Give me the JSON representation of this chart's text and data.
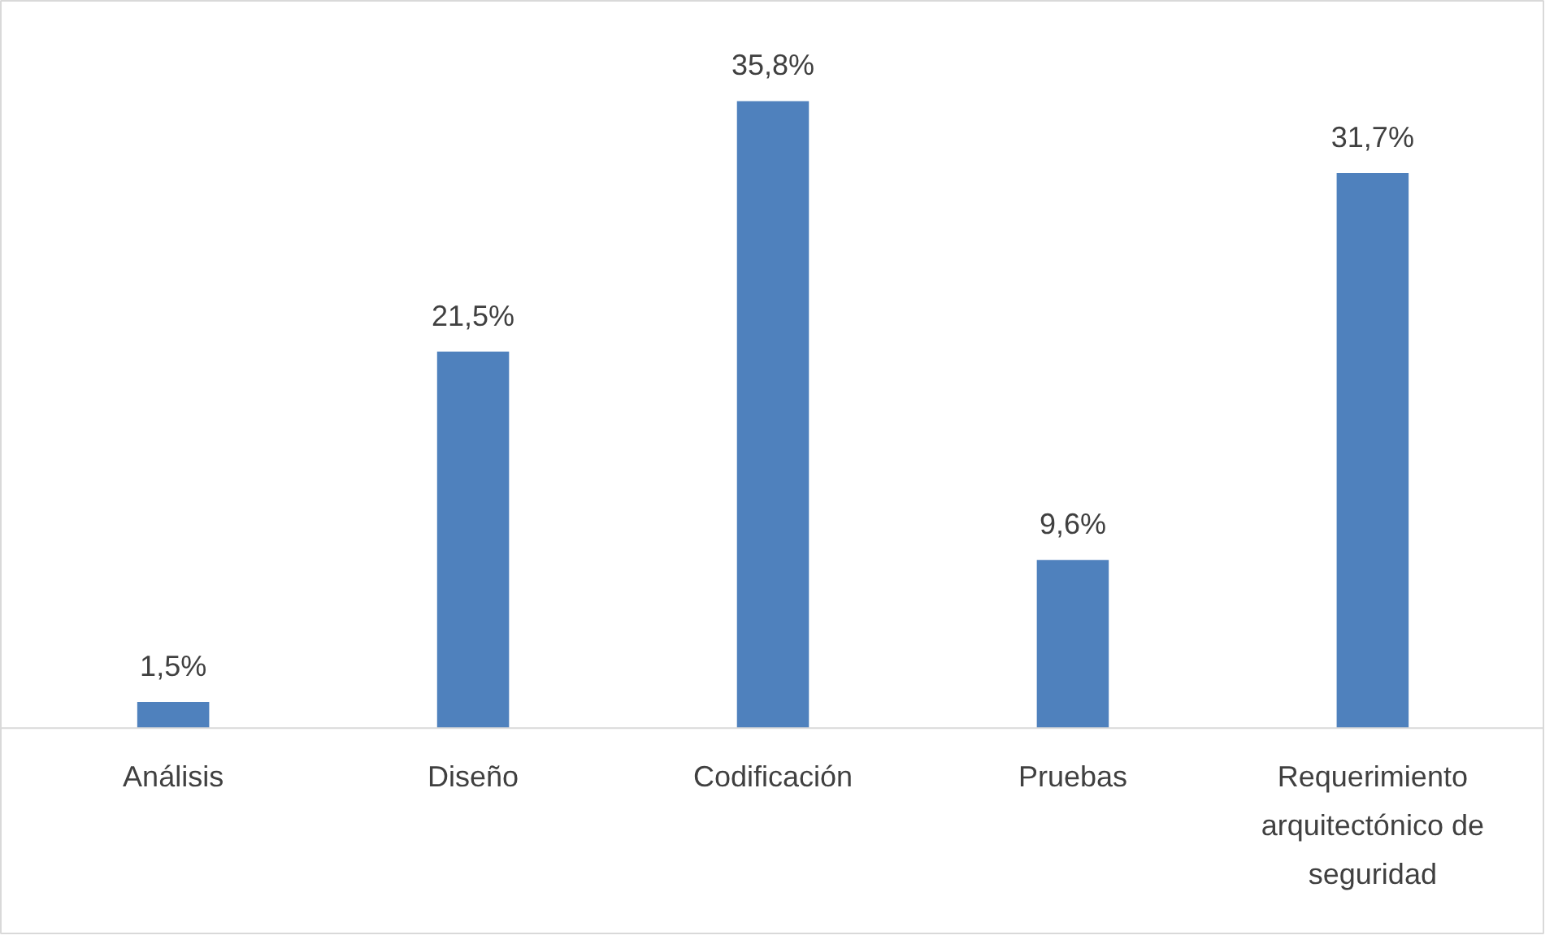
{
  "chart_data": {
    "type": "bar",
    "categories": [
      "Análisis",
      "Diseño",
      "Codificación",
      "Pruebas",
      "Requerimiento arquitectónico de seguridad"
    ],
    "values": [
      1.5,
      21.5,
      35.8,
      9.6,
      31.7
    ],
    "value_labels": [
      "1,5%",
      "21,5%",
      "35,8%",
      "9,6%",
      "31,7%"
    ],
    "color": "#4f81bd"
  }
}
